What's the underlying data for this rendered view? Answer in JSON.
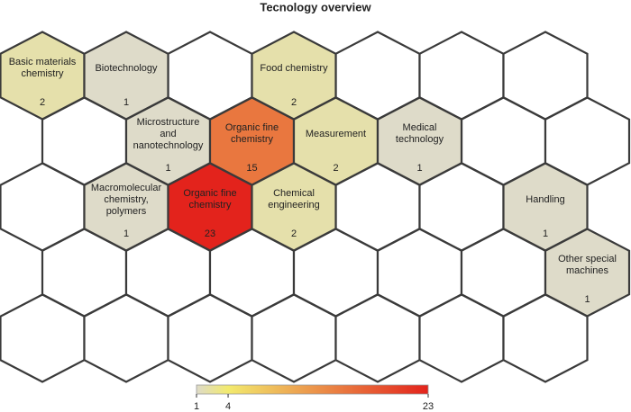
{
  "chart_data": {
    "type": "hexmap",
    "title": "Tecnology overview",
    "rows": 5,
    "columns": 7,
    "cells": [
      {
        "row": 0,
        "col": 0,
        "label": "Basic materials chemistry",
        "value": 2
      },
      {
        "row": 0,
        "col": 1,
        "label": "Biotechnology",
        "value": 1
      },
      {
        "row": 0,
        "col": 3,
        "label": "Food chemistry",
        "value": 2
      },
      {
        "row": 1,
        "col": 1,
        "label": "Microstructure and nanotechnology",
        "value": 1
      },
      {
        "row": 1,
        "col": 2,
        "label": "Organic fine chemistry",
        "value": 15
      },
      {
        "row": 1,
        "col": 3,
        "label": "Measurement",
        "value": 2
      },
      {
        "row": 1,
        "col": 4,
        "label": "Medical technology",
        "value": 1
      },
      {
        "row": 2,
        "col": 1,
        "label": "Macromolecular chemistry, polymers",
        "value": 1
      },
      {
        "row": 2,
        "col": 2,
        "label": "Organic fine chemistry",
        "value": 23
      },
      {
        "row": 2,
        "col": 3,
        "label": "Chemical engineering",
        "value": 2
      },
      {
        "row": 2,
        "col": 6,
        "label": "Handling",
        "value": 1
      },
      {
        "row": 3,
        "col": 6,
        "label": "Other special machines",
        "value": 1
      }
    ],
    "colorbar": {
      "lim": [
        1,
        23
      ],
      "ticks": [
        1,
        4,
        23
      ],
      "colors": [
        "#dedbc9",
        "#f2ea6e",
        "#e3231c"
      ]
    }
  }
}
